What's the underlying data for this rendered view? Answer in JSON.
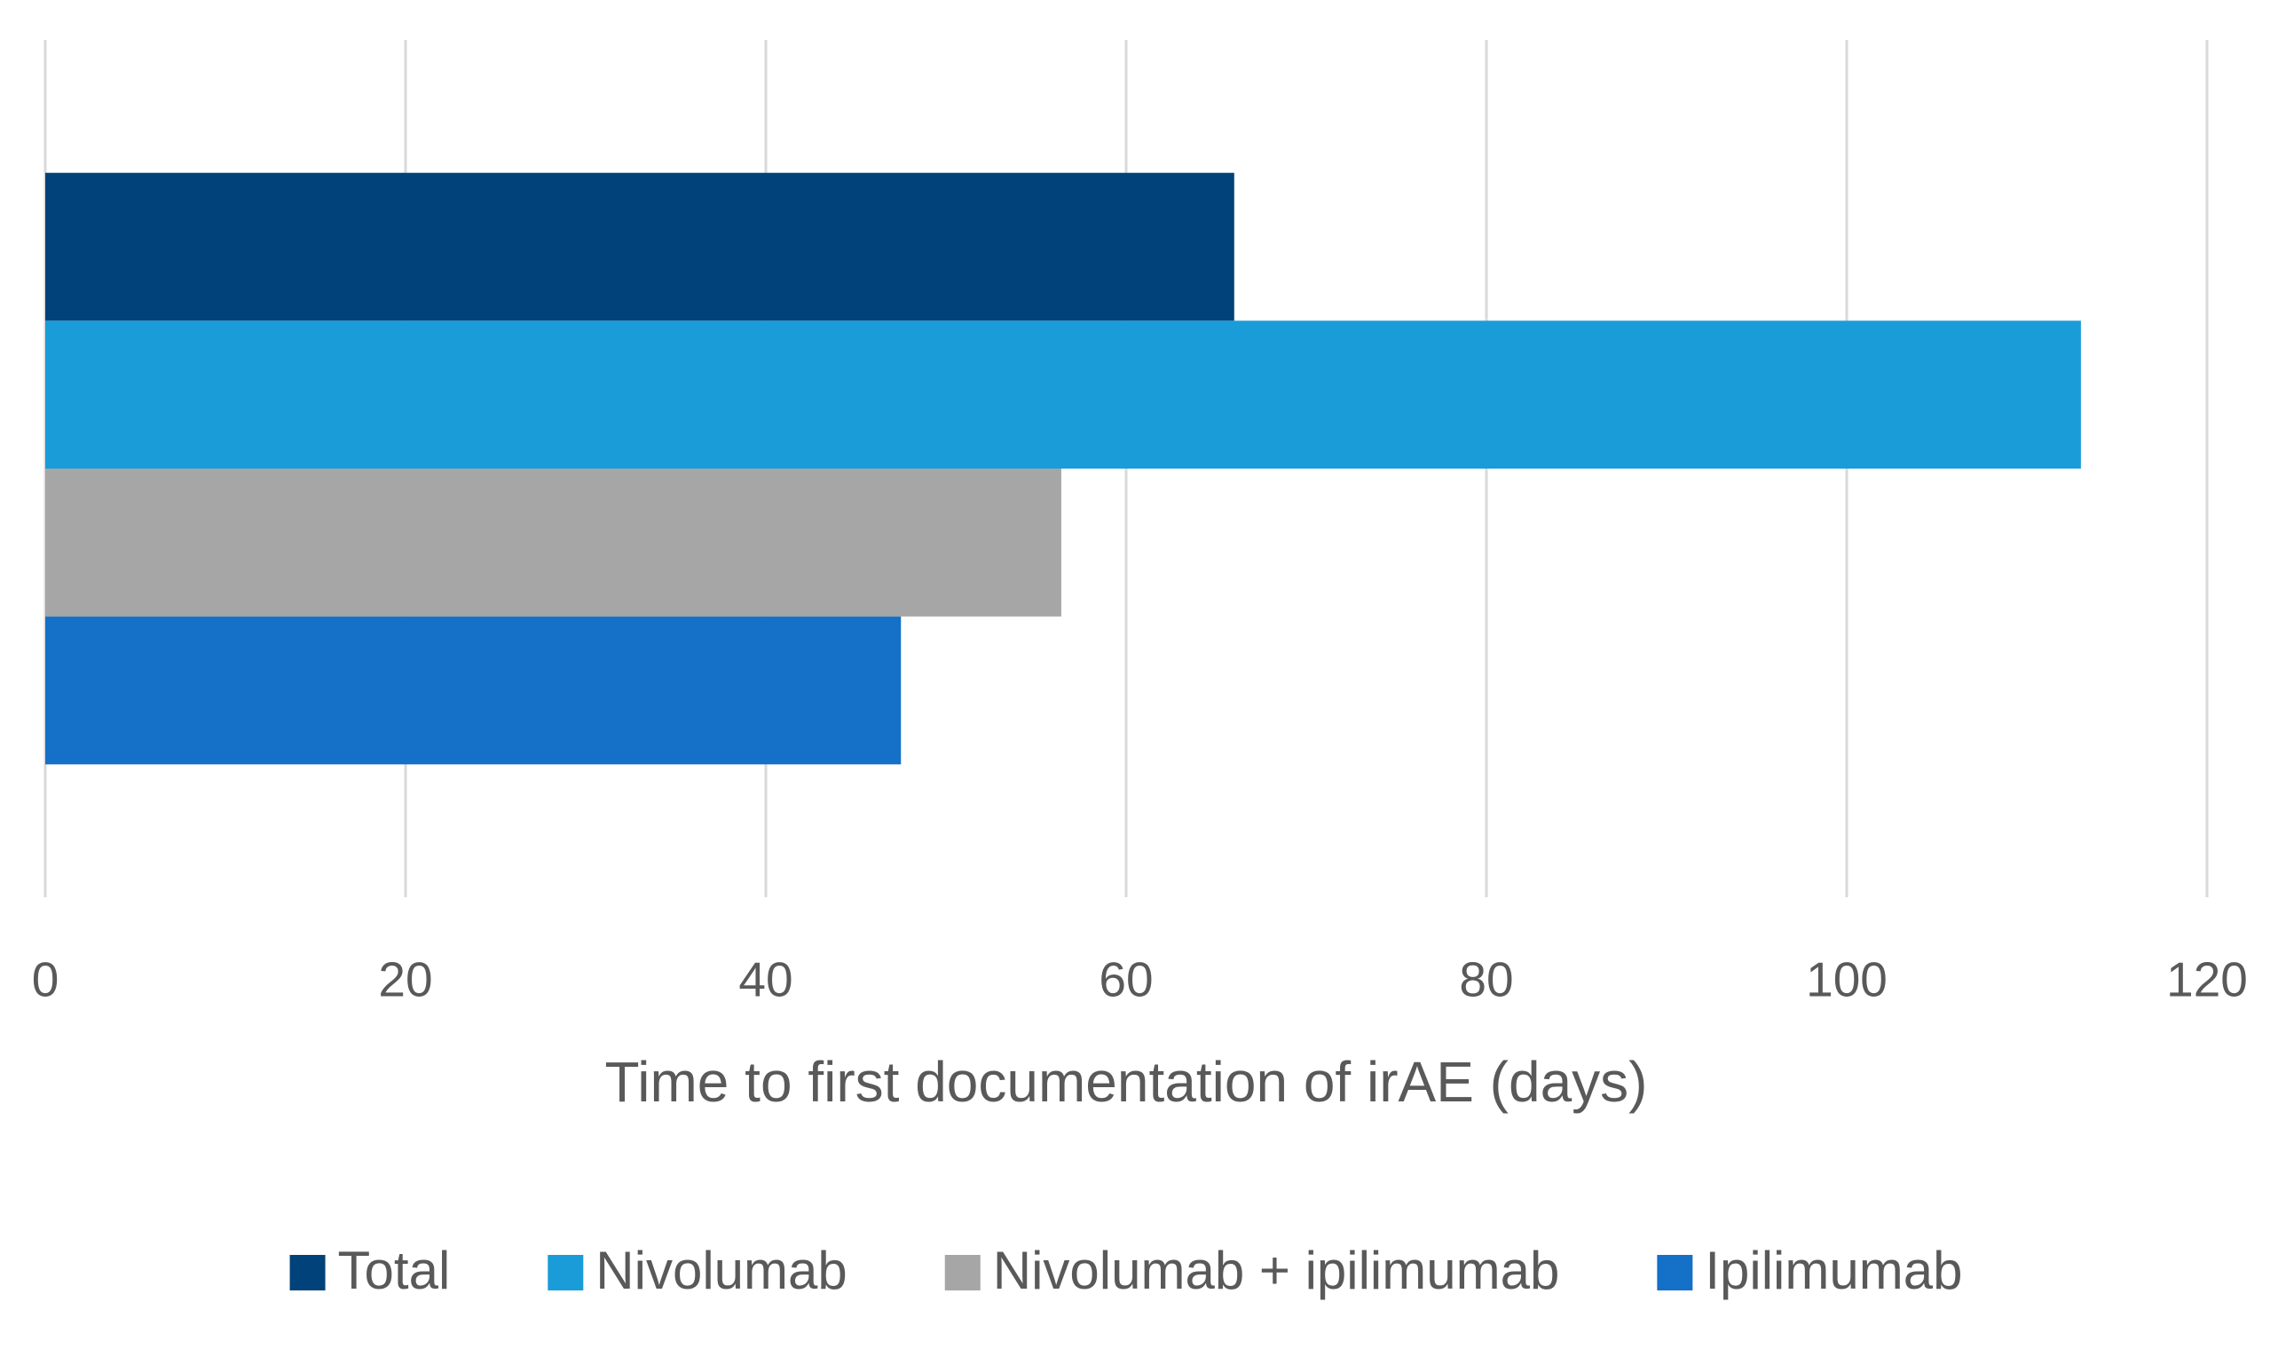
{
  "chart_data": {
    "type": "bar",
    "orientation": "horizontal",
    "x_label": "Time to first documentation of irAE (days)",
    "categories": [
      null
    ],
    "series": [
      {
        "name": "Total",
        "color": "#02427a",
        "values": [
          66
        ]
      },
      {
        "name": "Nivolumab",
        "color": "#1a9cd8",
        "values": [
          113
        ]
      },
      {
        "name": "Nivolumab + ipilimumab",
        "color": "#a6a6a6",
        "values": [
          56.4
        ]
      },
      {
        "name": "Ipilimumab",
        "color": "#1570c8",
        "values": [
          47.5
        ]
      }
    ],
    "xlim": [
      0,
      120
    ],
    "xticks": [
      0,
      20,
      40,
      60,
      80,
      100,
      120
    ],
    "grid": true,
    "legend": "bottom"
  }
}
